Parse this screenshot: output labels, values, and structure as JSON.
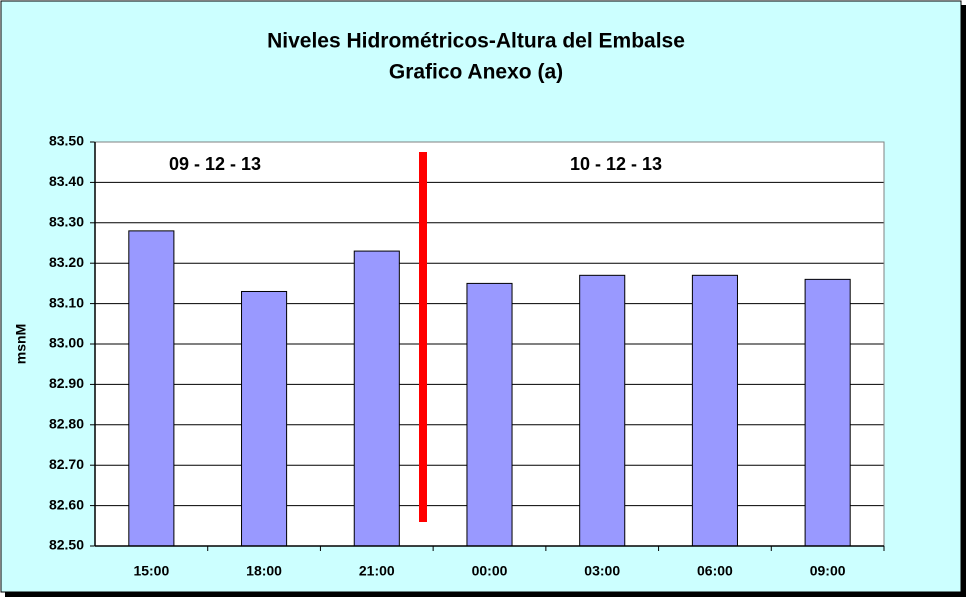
{
  "chart_data": {
    "type": "bar",
    "title": "Niveles Hidrométricos-Altura del Embalse",
    "subtitle": "Grafico Anexo (a)",
    "y_label": "msnM",
    "annotations": [
      "09 - 12 - 13",
      "10 - 12 - 13"
    ],
    "categories": [
      "15:00",
      "18:00",
      "21:00",
      "00:00",
      "03:00",
      "06:00",
      "09:00"
    ],
    "values": [
      83.28,
      83.13,
      83.23,
      83.15,
      83.17,
      83.17,
      83.16
    ],
    "color": "#9999ff",
    "ylim": [
      82.5,
      83.5
    ],
    "yticks": [
      {
        "value": 82.5,
        "label": "82.50"
      },
      {
        "value": 82.6,
        "label": "82.60"
      },
      {
        "value": 82.7,
        "label": "82.70"
      },
      {
        "value": 82.8,
        "label": "82.80"
      },
      {
        "value": 82.9,
        "label": "82.90"
      },
      {
        "value": 83.0,
        "label": "83.00"
      },
      {
        "value": 83.1,
        "label": "83.10"
      },
      {
        "value": 83.2,
        "label": "83.20"
      },
      {
        "value": 83.3,
        "label": "83.30"
      },
      {
        "value": 83.4,
        "label": "83.40"
      },
      {
        "value": 83.5,
        "label": "83.50"
      }
    ],
    "grid": true
  }
}
